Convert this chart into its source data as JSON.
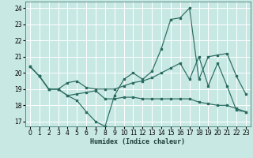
{
  "xlabel": "Humidex (Indice chaleur)",
  "background_color": "#c8e8e4",
  "grid_color": "#ffffff",
  "line_color": "#2a6b60",
  "xlim": [
    -0.5,
    23.5
  ],
  "ylim": [
    16.7,
    24.4
  ],
  "yticks": [
    17,
    18,
    19,
    20,
    21,
    22,
    23,
    24
  ],
  "xticks": [
    0,
    1,
    2,
    3,
    4,
    5,
    6,
    7,
    8,
    9,
    10,
    11,
    12,
    13,
    14,
    15,
    16,
    17,
    18,
    19,
    20,
    21,
    22,
    23
  ],
  "line1_x": [
    0,
    1,
    2,
    3,
    4,
    5,
    6,
    7,
    8,
    9,
    10,
    11,
    12,
    13,
    14,
    15,
    16,
    17,
    18,
    19,
    20,
    21,
    22,
    23
  ],
  "line1_y": [
    20.4,
    19.8,
    19.0,
    19.0,
    18.6,
    18.3,
    17.6,
    17.0,
    16.7,
    18.6,
    19.6,
    20.0,
    19.6,
    20.1,
    21.5,
    23.3,
    23.4,
    24.0,
    19.6,
    21.0,
    21.1,
    21.2,
    19.8,
    18.7
  ],
  "line2_x": [
    0,
    1,
    2,
    3,
    4,
    5,
    6,
    7,
    8,
    9,
    10,
    11,
    12,
    13,
    14,
    15,
    16,
    17,
    18,
    19,
    20,
    21,
    22,
    23
  ],
  "line2_y": [
    20.4,
    19.8,
    19.0,
    19.0,
    19.4,
    19.5,
    19.1,
    19.0,
    19.0,
    19.0,
    19.2,
    19.4,
    19.5,
    19.7,
    20.0,
    20.3,
    20.6,
    19.6,
    21.0,
    19.2,
    20.6,
    19.2,
    17.7,
    17.6
  ],
  "line3_x": [
    0,
    1,
    2,
    3,
    4,
    5,
    6,
    7,
    8,
    9,
    10,
    11,
    12,
    13,
    14,
    15,
    16,
    17,
    18,
    19,
    20,
    21,
    22,
    23
  ],
  "line3_y": [
    20.4,
    19.8,
    19.0,
    19.0,
    18.6,
    18.7,
    18.8,
    18.9,
    18.4,
    18.4,
    18.5,
    18.5,
    18.4,
    18.4,
    18.4,
    18.4,
    18.4,
    18.4,
    18.2,
    18.1,
    18.0,
    18.0,
    17.8,
    17.6
  ],
  "xlabel_fontsize": 6.0,
  "tick_fontsize": 5.5
}
